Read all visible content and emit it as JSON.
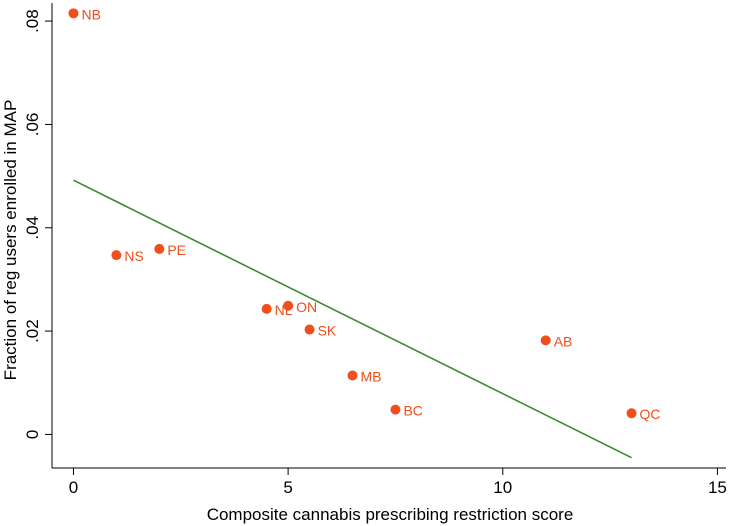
{
  "chart_data": {
    "type": "scatter",
    "title": "",
    "xlabel": "Composite cannabis prescribing restriction score",
    "ylabel": "Fraction of reg users enrolled in MAP",
    "xlim": [
      -0.5,
      15.2
    ],
    "ylim": [
      -0.0065,
      0.0835
    ],
    "xticks": [
      {
        "value": 0,
        "label": "0"
      },
      {
        "value": 5,
        "label": "5"
      },
      {
        "value": 10,
        "label": "10"
      },
      {
        "value": 15,
        "label": "15"
      }
    ],
    "yticks": [
      {
        "value": 0,
        "label": "0"
      },
      {
        "value": 0.02,
        "label": ".02"
      },
      {
        "value": 0.04,
        "label": ".04"
      },
      {
        "value": 0.06,
        "label": ".06"
      },
      {
        "value": 0.08,
        "label": ".08"
      }
    ],
    "grid": false,
    "points": [
      {
        "label": "NB",
        "x": 0,
        "y": 0.0815
      },
      {
        "label": "NS",
        "x": 1,
        "y": 0.0347
      },
      {
        "label": "PE",
        "x": 2,
        "y": 0.0359
      },
      {
        "label": "NL",
        "x": 4.5,
        "y": 0.0243
      },
      {
        "label": "ON",
        "x": 5,
        "y": 0.0249
      },
      {
        "label": "SK",
        "x": 5.5,
        "y": 0.0203
      },
      {
        "label": "MB",
        "x": 6.5,
        "y": 0.0114
      },
      {
        "label": "BC",
        "x": 7.5,
        "y": 0.0048
      },
      {
        "label": "AB",
        "x": 11,
        "y": 0.0182
      },
      {
        "label": "QC",
        "x": 13,
        "y": 0.0041
      }
    ],
    "fit_line": {
      "x": [
        0,
        13
      ],
      "y": [
        0.0492,
        -0.0045
      ]
    },
    "colors": {
      "points": "#f04e1c",
      "labels": "#f04e1c",
      "fit_line": "#3a8a2e",
      "axis": "#000000"
    }
  }
}
